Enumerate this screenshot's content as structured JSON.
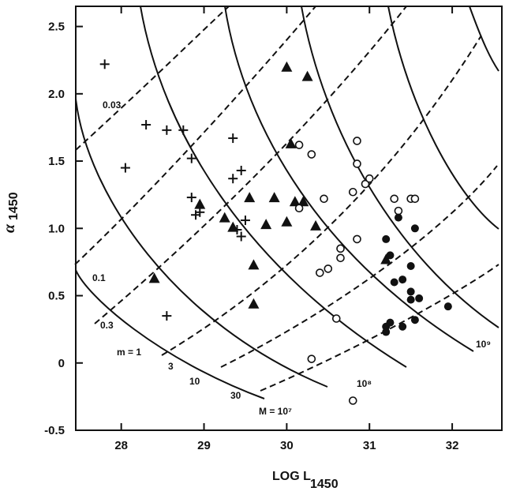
{
  "chart_data": {
    "type": "scatter",
    "xlabel_main": "LOG L",
    "xlabel_sub": "1450",
    "ylabel_main": "α",
    "ylabel_sub": "1450",
    "xlim": [
      27.45,
      32.6
    ],
    "ylim": [
      -0.5,
      2.65
    ],
    "xticks": [
      28,
      29,
      30,
      31,
      32
    ],
    "yticks": [
      -0.5,
      0,
      0.5,
      1.0,
      1.5,
      2.0,
      2.5
    ],
    "ytick_labels": [
      "-0.5",
      "0",
      "0.5",
      "1.0",
      "1.5",
      "2.0",
      "2.5"
    ],
    "grid": false,
    "series": [
      {
        "marker": "plus",
        "points": [
          [
            27.8,
            2.22
          ],
          [
            28.3,
            1.77
          ],
          [
            28.05,
            1.45
          ],
          [
            28.55,
            1.73
          ],
          [
            28.75,
            1.73
          ],
          [
            28.85,
            1.52
          ],
          [
            29.35,
            1.67
          ],
          [
            29.45,
            1.43
          ],
          [
            29.35,
            1.37
          ],
          [
            28.85,
            1.23
          ],
          [
            28.9,
            1.1
          ],
          [
            28.95,
            1.12
          ],
          [
            29.5,
            1.06
          ],
          [
            29.4,
            0.99
          ],
          [
            29.45,
            0.94
          ],
          [
            28.55,
            0.35
          ]
        ]
      },
      {
        "marker": "filled-triangle",
        "points": [
          [
            28.4,
            0.63
          ],
          [
            28.95,
            1.18
          ],
          [
            29.25,
            1.08
          ],
          [
            29.35,
            1.01
          ],
          [
            29.55,
            1.23
          ],
          [
            29.6,
            0.73
          ],
          [
            29.6,
            0.44
          ],
          [
            29.75,
            1.03
          ],
          [
            29.85,
            1.23
          ],
          [
            30.0,
            1.05
          ],
          [
            30.0,
            2.2
          ],
          [
            30.05,
            1.63
          ],
          [
            30.25,
            2.13
          ],
          [
            30.1,
            1.2
          ],
          [
            30.2,
            1.2
          ],
          [
            30.35,
            1.02
          ],
          [
            31.2,
            0.77
          ]
        ]
      },
      {
        "marker": "open-circle",
        "points": [
          [
            30.15,
            1.62
          ],
          [
            30.3,
            1.55
          ],
          [
            30.45,
            1.22
          ],
          [
            30.15,
            1.15
          ],
          [
            30.4,
            0.67
          ],
          [
            30.5,
            0.7
          ],
          [
            30.65,
            0.85
          ],
          [
            30.65,
            0.78
          ],
          [
            30.85,
            0.92
          ],
          [
            30.85,
            1.65
          ],
          [
            30.85,
            1.48
          ],
          [
            30.95,
            1.33
          ],
          [
            31.0,
            1.37
          ],
          [
            30.8,
            1.27
          ],
          [
            31.3,
            1.22
          ],
          [
            31.35,
            1.13
          ],
          [
            31.5,
            1.22
          ],
          [
            31.55,
            1.22
          ],
          [
            30.6,
            0.33
          ],
          [
            30.3,
            0.03
          ],
          [
            30.8,
            -0.28
          ]
        ]
      },
      {
        "marker": "filled-circle",
        "points": [
          [
            31.35,
            1.08
          ],
          [
            31.55,
            1.0
          ],
          [
            31.2,
            0.92
          ],
          [
            31.25,
            0.8
          ],
          [
            31.5,
            0.72
          ],
          [
            31.3,
            0.6
          ],
          [
            31.4,
            0.62
          ],
          [
            31.5,
            0.53
          ],
          [
            31.5,
            0.47
          ],
          [
            31.6,
            0.48
          ],
          [
            31.2,
            0.27
          ],
          [
            31.25,
            0.3
          ],
          [
            31.4,
            0.27
          ],
          [
            31.55,
            0.32
          ],
          [
            31.2,
            0.23
          ],
          [
            31.95,
            0.42
          ]
        ]
      }
    ],
    "solid_curve_labels": [
      "m = 1",
      "3",
      "10",
      "30",
      "M = 10⁷",
      "10⁸",
      "10⁹"
    ],
    "dashed_curve_labels": [
      "0.03",
      "0.1",
      "0.3"
    ]
  }
}
